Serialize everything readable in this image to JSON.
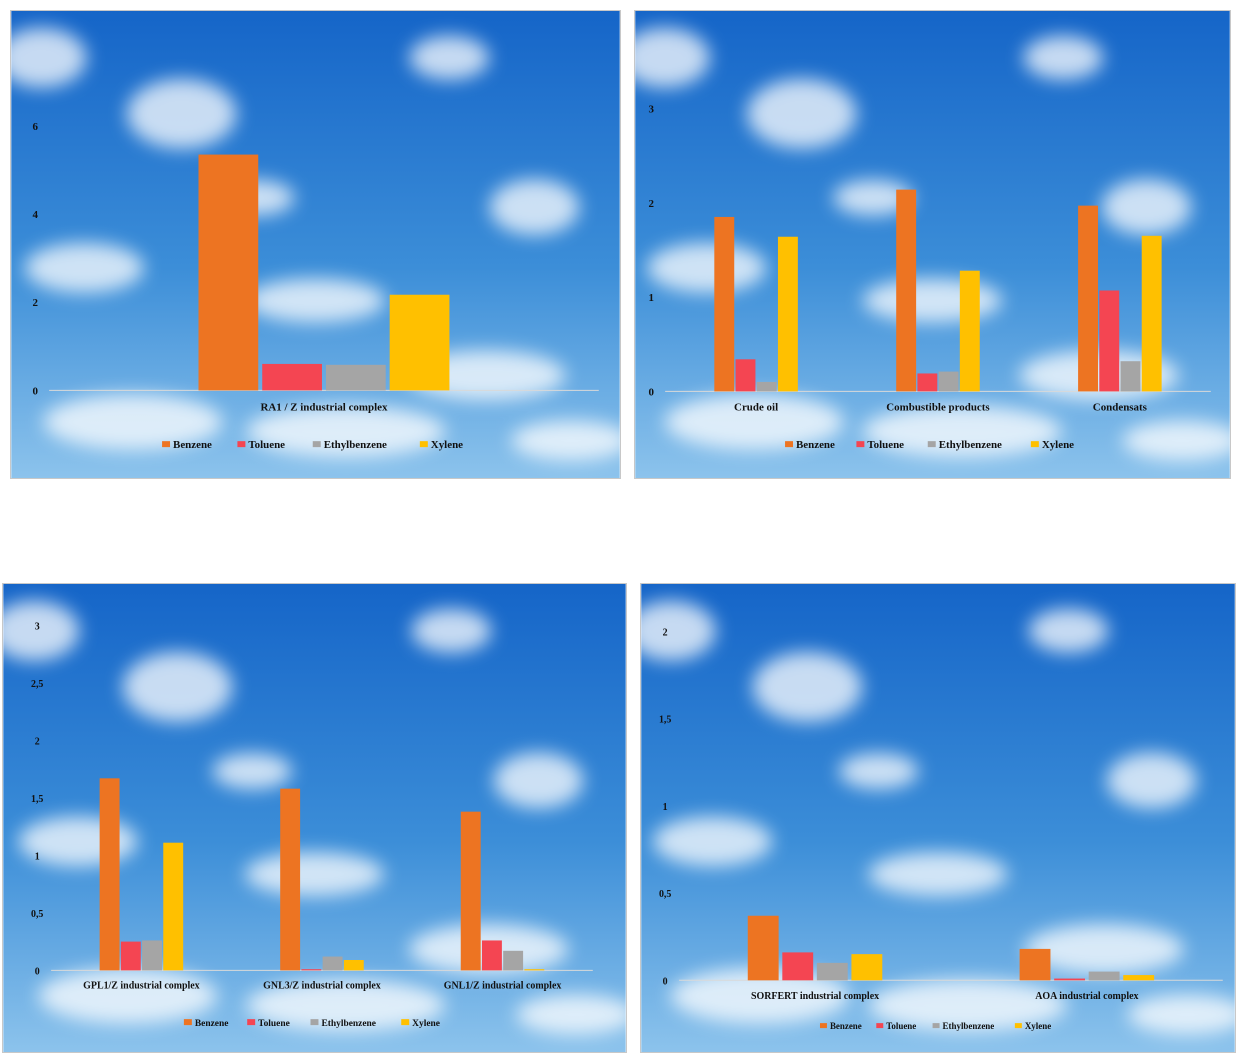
{
  "colors": {
    "benzene": "#ED7422",
    "toluene": "#F44552",
    "ethylbenzene": "#A5A5A5",
    "xylene": "#FFC000",
    "sky_top": "#1565C8",
    "sky_bottom": "#8CC3EC"
  },
  "chart_data": [
    {
      "type": "bar",
      "categories": [
        "RA1 / Z industrial complex"
      ],
      "series": [
        {
          "name": "Benzene",
          "values": [
            5.35
          ]
        },
        {
          "name": "Toluene",
          "values": [
            0.6
          ]
        },
        {
          "name": "Ethylbenzene",
          "values": [
            0.58
          ]
        },
        {
          "name": "Xylene",
          "values": [
            2.17
          ]
        }
      ],
      "yticks": [
        "0",
        "2",
        "4",
        "6"
      ],
      "ylim": [
        0,
        6.8
      ],
      "legend": "bottom",
      "grid": false
    },
    {
      "type": "bar",
      "categories": [
        "Crude oil",
        "Combustible products",
        "Condensats"
      ],
      "series": [
        {
          "name": "Benzene",
          "values": [
            1.85,
            2.14,
            1.97
          ]
        },
        {
          "name": "Toluene",
          "values": [
            0.34,
            0.19,
            1.07
          ]
        },
        {
          "name": "Ethylbenzene",
          "values": [
            0.1,
            0.21,
            0.32
          ]
        },
        {
          "name": "Xylene",
          "values": [
            1.64,
            1.28,
            1.65
          ]
        }
      ],
      "yticks": [
        "0",
        "1",
        "2",
        "3"
      ],
      "ylim": [
        0,
        3.2
      ],
      "legend": "bottom",
      "grid": false
    },
    {
      "type": "bar",
      "categories": [
        "GPL1/Z industrial complex",
        "GNL3/Z industrial complex",
        "GNL1/Z industrial complex"
      ],
      "series": [
        {
          "name": "Benzene",
          "values": [
            1.67,
            1.58,
            1.38
          ]
        },
        {
          "name": "Toluene",
          "values": [
            0.25,
            0.01,
            0.26
          ]
        },
        {
          "name": "Ethylbenzene",
          "values": [
            0.26,
            0.12,
            0.17
          ]
        },
        {
          "name": "Xylene",
          "values": [
            1.11,
            0.09,
            0.01
          ]
        }
      ],
      "yticks": [
        "0",
        "0,5",
        "1",
        "1,5",
        "2",
        "2,5",
        "3"
      ],
      "ylim": [
        0,
        3.1
      ],
      "legend": "bottom",
      "grid": false
    },
    {
      "type": "bar",
      "categories": [
        "SORFERT industrial complex",
        "AOA industrial complex"
      ],
      "series": [
        {
          "name": "Benzene",
          "values": [
            0.37,
            0.18
          ]
        },
        {
          "name": "Toluene",
          "values": [
            0.16,
            0.01
          ]
        },
        {
          "name": "Ethylbenzene",
          "values": [
            0.1,
            0.05
          ]
        },
        {
          "name": "Xylene",
          "values": [
            0.15,
            0.03
          ]
        }
      ],
      "yticks": [
        "0",
        "0,5",
        "1",
        "1,5",
        "2"
      ],
      "ylim": [
        0,
        2.1
      ],
      "legend": "bottom",
      "grid": false
    }
  ]
}
